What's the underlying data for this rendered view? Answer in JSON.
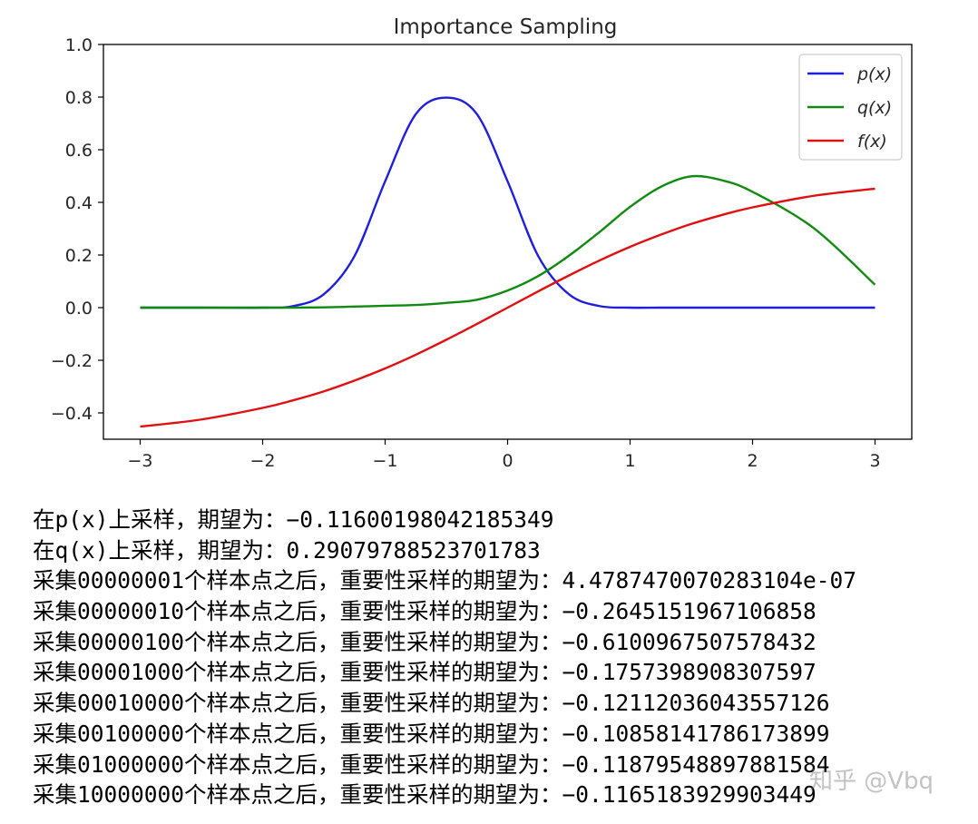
{
  "chart_data": {
    "type": "line",
    "title": "Importance Sampling",
    "xlabel": "",
    "ylabel": "",
    "xlim": [
      -3.3,
      3.3
    ],
    "ylim": [
      -0.5,
      1.0
    ],
    "xticks": [
      -3,
      -2,
      -1,
      0,
      1,
      2,
      3
    ],
    "xtick_labels": [
      "−3",
      "−2",
      "−1",
      "0",
      "1",
      "2",
      "3"
    ],
    "yticks": [
      1.0,
      0.8,
      0.6,
      0.4,
      0.2,
      0.0,
      -0.2,
      -0.4
    ],
    "ytick_labels": [
      "1.0",
      "0.8",
      "0.6",
      "0.4",
      "0.2",
      "0.0",
      "−0.2",
      "−0.4"
    ],
    "grid": false,
    "legend_position": "top-right",
    "x": [
      -3,
      -2.5,
      -2,
      -1.75,
      -1.5,
      -1.25,
      -1,
      -0.75,
      -0.5,
      -0.25,
      0,
      0.25,
      0.5,
      0.75,
      1,
      1.25,
      1.5,
      1.75,
      2,
      2.5,
      3
    ],
    "series": [
      {
        "name": "p(x)",
        "color": "#1f1fdb",
        "values": [
          0.0,
          0.0,
          0.0,
          0.006,
          0.051,
          0.196,
          0.48,
          0.735,
          0.798,
          0.735,
          0.48,
          0.196,
          0.051,
          0.006,
          0.0,
          0.0,
          0.0,
          0.0,
          0.0,
          0.0,
          0.0
        ]
      },
      {
        "name": "q(x)",
        "color": "#108a10",
        "values": [
          0.0,
          0.0,
          0.0,
          0.0,
          0.001,
          0.004,
          0.007,
          0.01,
          0.018,
          0.03,
          0.065,
          0.12,
          0.197,
          0.287,
          0.383,
          0.459,
          0.499,
          0.484,
          0.44,
          0.302,
          0.087
        ]
      },
      {
        "name": "f(x)",
        "color": "#e01010",
        "values": [
          -0.452,
          -0.425,
          -0.381,
          -0.352,
          -0.318,
          -0.277,
          -0.231,
          -0.179,
          -0.122,
          -0.062,
          0.0,
          0.062,
          0.122,
          0.179,
          0.231,
          0.277,
          0.318,
          0.352,
          0.381,
          0.425,
          0.452
        ]
      }
    ]
  },
  "output_lines": [
    "在p(x)上采样，期望为：−0.11600198042185349",
    "在q(x)上采样，期望为：0.29079788523701783",
    "采集00000001个样本点之后，重要性采样的期望为：4.4787470070283104e-07",
    "采集00000010个样本点之后，重要性采样的期望为：−0.2645151967106858",
    "采集00000100个样本点之后，重要性采样的期望为：−0.6100967507578432",
    "采集00001000个样本点之后，重要性采样的期望为：−0.1757398908307597",
    "采集00010000个样本点之后，重要性采样的期望为：−0.12112036043557126",
    "采集00100000个样本点之后，重要性采样的期望为：−0.10858141786173899",
    "采集01000000个样本点之后，重要性采样的期望为：−0.11879548897881584",
    "采集10000000个样本点之后，重要性采样的期望为：−0.1165183929903449"
  ],
  "watermark": "知乎 @Vbq"
}
